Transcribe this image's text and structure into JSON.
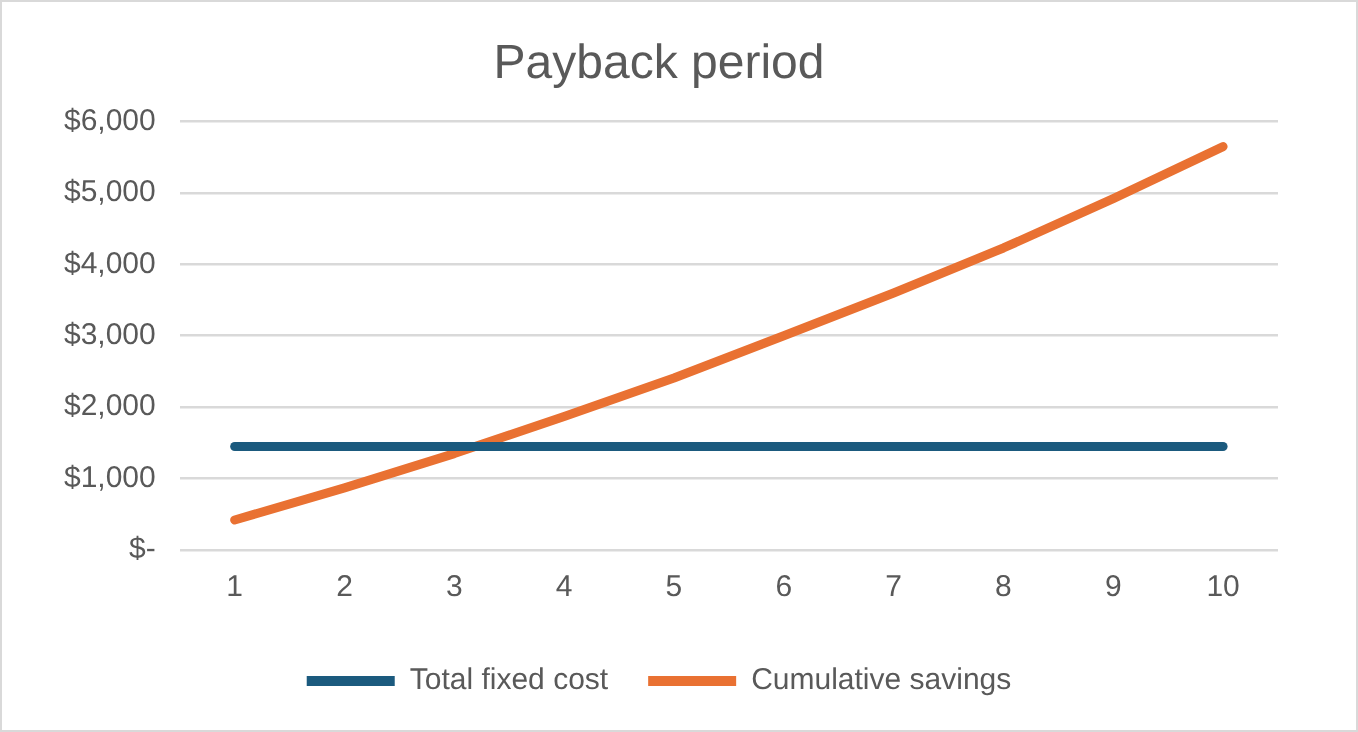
{
  "chart_data": {
    "type": "line",
    "title": "Payback period",
    "categories": [
      "1",
      "2",
      "3",
      "4",
      "5",
      "6",
      "7",
      "8",
      "9",
      "10"
    ],
    "series": [
      {
        "name": "Total fixed cost",
        "color": "#1b5a7e",
        "values": [
          1450,
          1450,
          1450,
          1450,
          1450,
          1450,
          1450,
          1450,
          1450,
          1450
        ]
      },
      {
        "name": "Cumulative savings",
        "color": "#e97132",
        "values": [
          420,
          870,
          1350,
          1870,
          2410,
          3000,
          3600,
          4230,
          4920,
          5650
        ]
      }
    ],
    "ylim": [
      0,
      6000
    ],
    "yticks": [
      {
        "value": 0,
        "label": "$-"
      },
      {
        "value": 1000,
        "label": "$1,000"
      },
      {
        "value": 2000,
        "label": "$2,000"
      },
      {
        "value": 3000,
        "label": "$3,000"
      },
      {
        "value": 4000,
        "label": "$4,000"
      },
      {
        "value": 5000,
        "label": "$5,000"
      },
      {
        "value": 6000,
        "label": "$6,000"
      }
    ],
    "grid": "y",
    "legend": "bottom",
    "marker": "none",
    "line_style": "solid"
  }
}
